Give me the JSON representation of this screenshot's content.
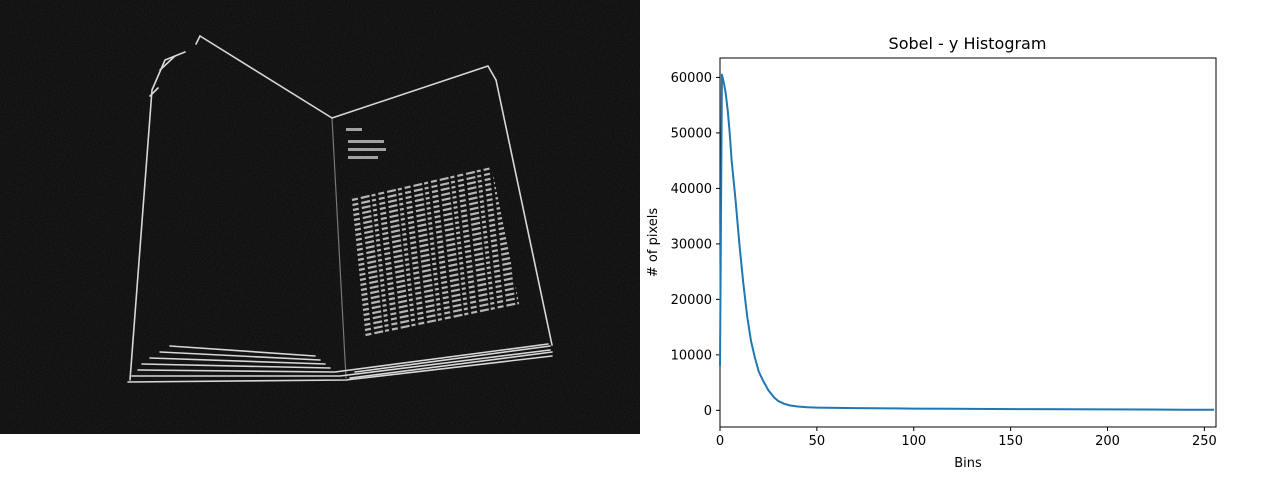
{
  "image_panel": {
    "description_icon": "sobel-edge-image-of-open-book"
  },
  "chart_data": {
    "type": "line",
    "title": "Sobel - y Histogram",
    "xlabel": "Bins",
    "ylabel": "# of pixels",
    "xlim": [
      0,
      256
    ],
    "ylim": [
      -3000,
      63500
    ],
    "xticks": [
      0,
      50,
      100,
      150,
      200,
      250
    ],
    "yticks": [
      0,
      10000,
      20000,
      30000,
      40000,
      50000,
      60000
    ],
    "grid": false,
    "series": [
      {
        "color": "#1f77b4",
        "x": [
          0,
          1,
          2,
          3,
          4,
          5,
          6,
          8,
          10,
          12,
          14,
          16,
          18,
          20,
          22,
          25,
          28,
          30,
          33,
          36,
          40,
          45,
          50,
          60,
          70,
          80,
          90,
          100,
          120,
          140,
          160,
          180,
          200,
          220,
          240,
          255
        ],
        "y": [
          8000,
          60500,
          59000,
          57000,
          54000,
          50000,
          45000,
          38000,
          30000,
          23000,
          17000,
          12500,
          9500,
          7000,
          5500,
          3600,
          2300,
          1700,
          1200,
          900,
          700,
          550,
          500,
          450,
          400,
          380,
          350,
          320,
          280,
          250,
          220,
          200,
          180,
          150,
          120,
          100
        ]
      }
    ]
  }
}
